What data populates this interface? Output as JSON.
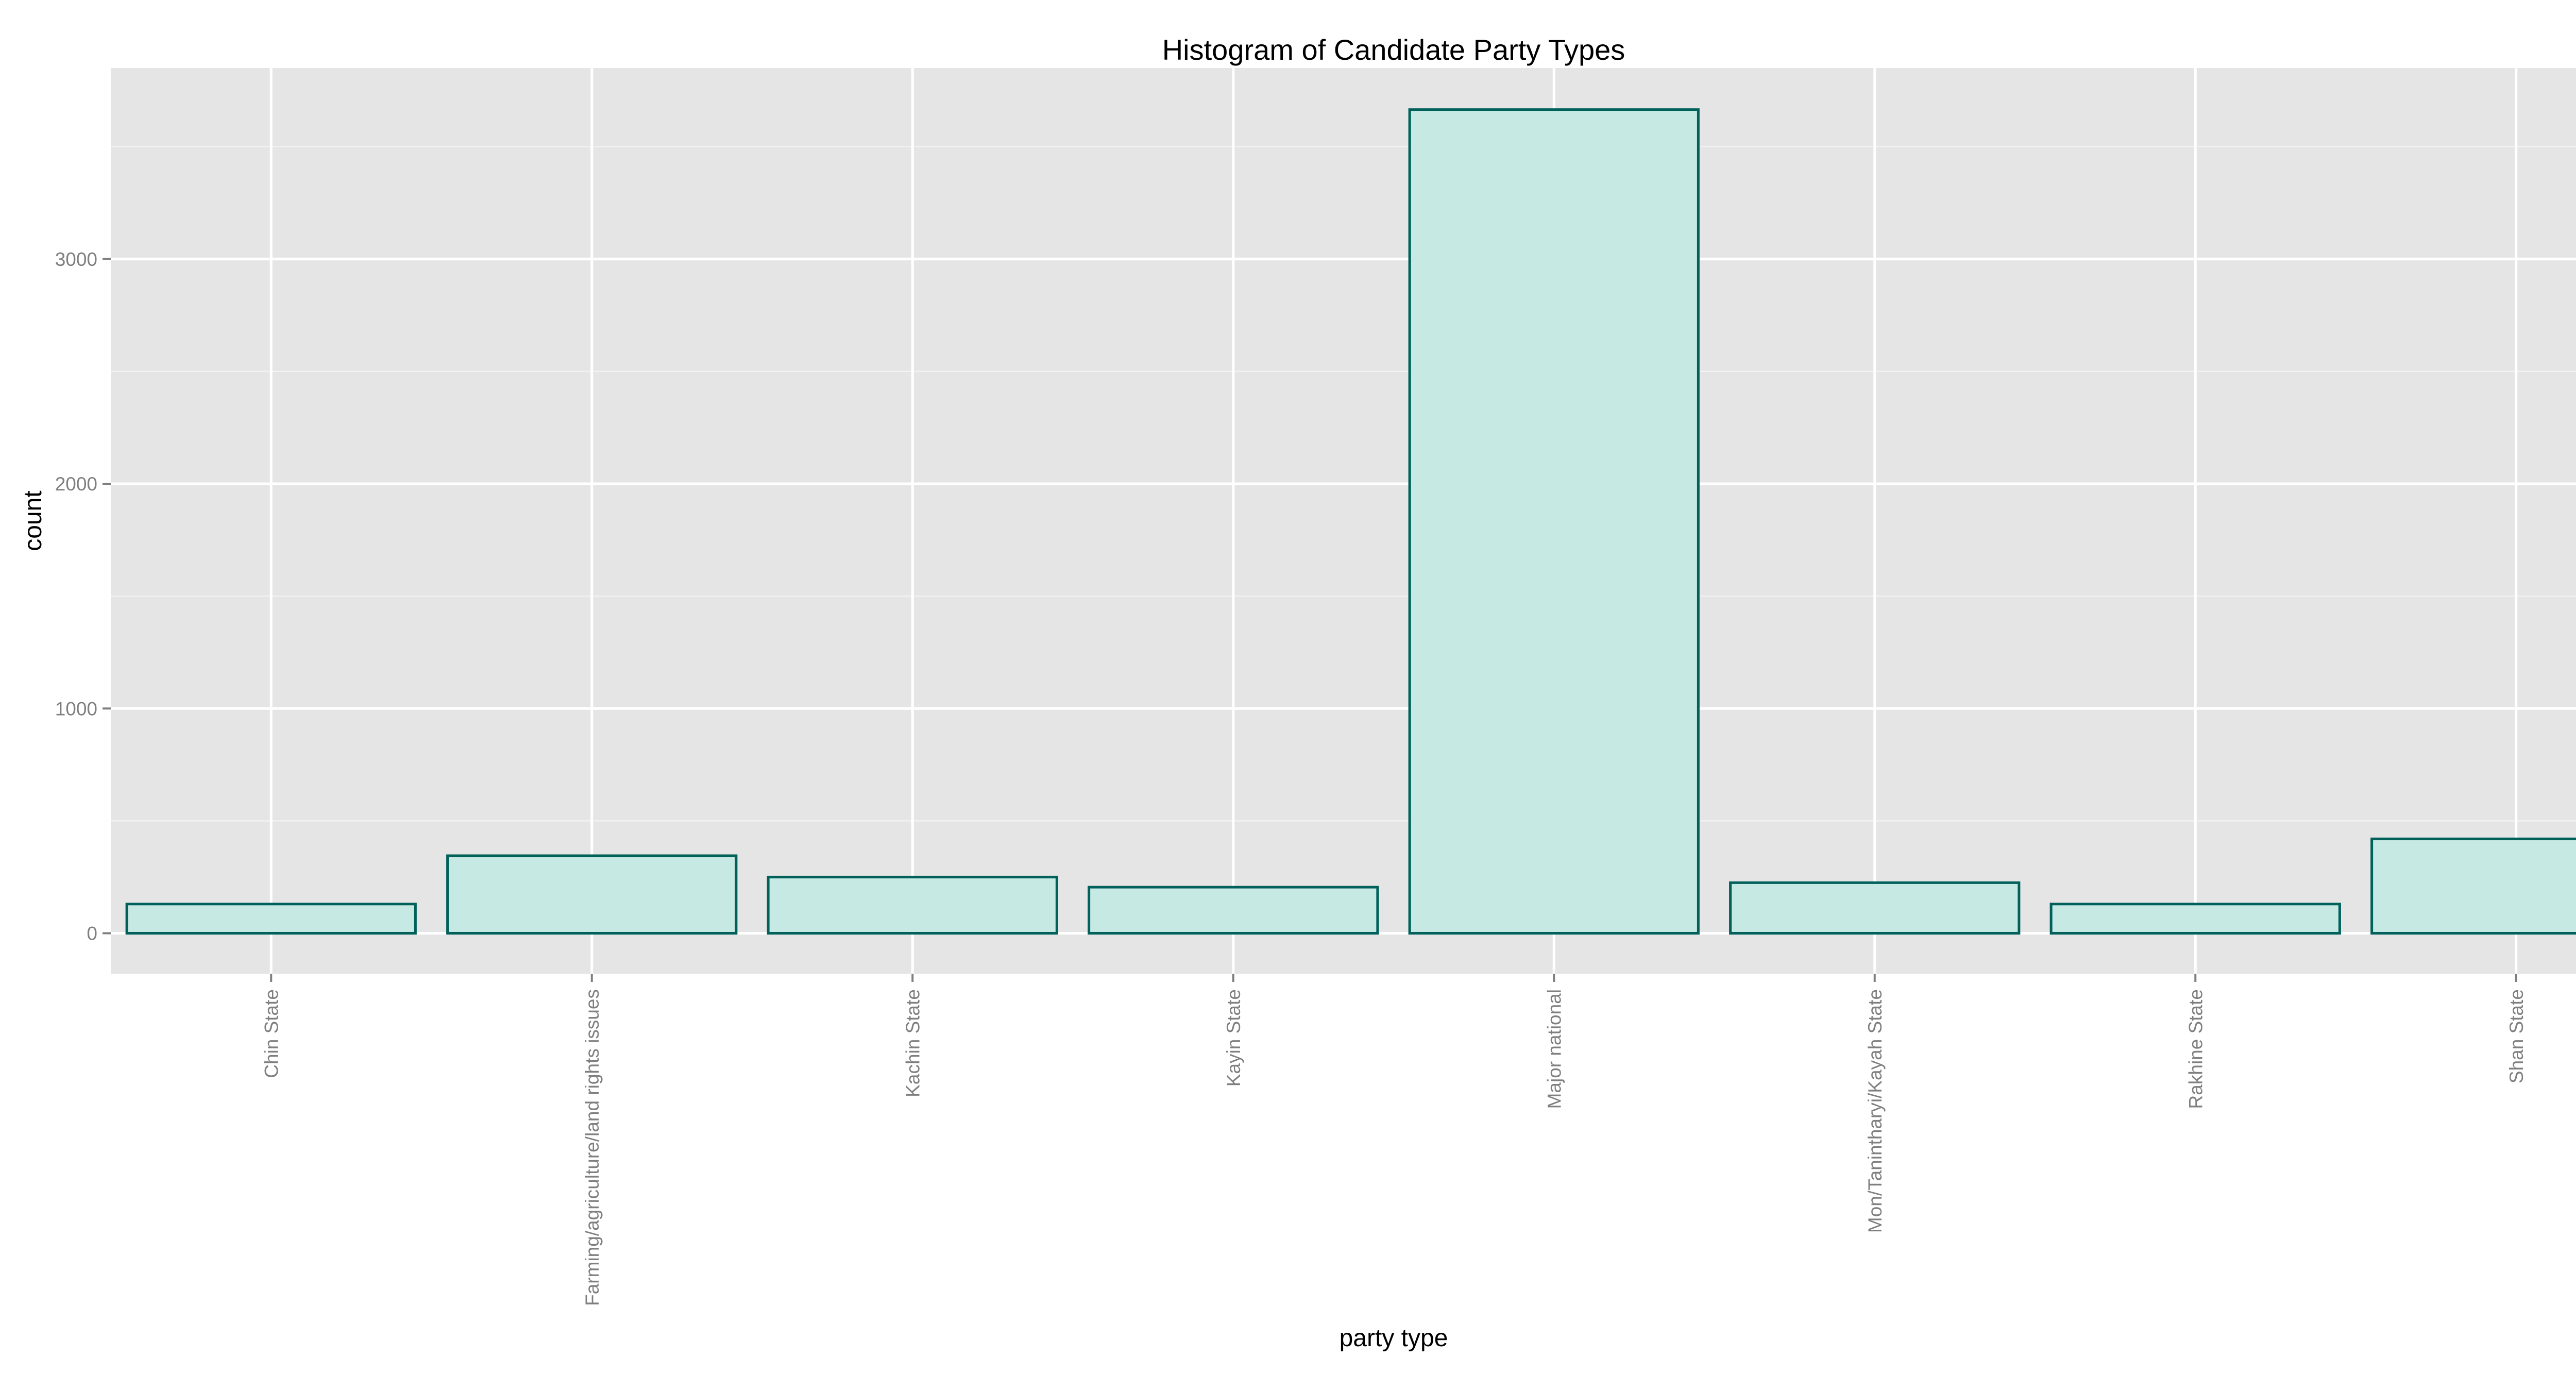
{
  "chart_data": {
    "type": "bar",
    "title": "Histogram of Candidate Party Types",
    "xlabel": "party type",
    "ylabel": "count",
    "categories": [
      "Chin State",
      "Farming/agriculture/land rights issues",
      "Kachin State",
      "Kayin State",
      "Major national",
      "Mon/Tanintharyi/Kayah State",
      "Rakhine State",
      "Shan State"
    ],
    "values": [
      130,
      345,
      250,
      205,
      3665,
      225,
      130,
      420
    ],
    "ylim": [
      -180,
      3850
    ],
    "yticks": [
      0,
      1000,
      2000,
      3000
    ],
    "grid": true,
    "legend": "none",
    "colors": {
      "panel_background": "#e5e5e5",
      "grid_major": "#ffffff",
      "grid_minor": "#f2f2f2",
      "bar_fill": "#c6e9e3",
      "bar_stroke": "#00605a",
      "tick_label": "#7f7f7f",
      "tick_mark": "#7f7f7f",
      "text": "#000000"
    }
  }
}
